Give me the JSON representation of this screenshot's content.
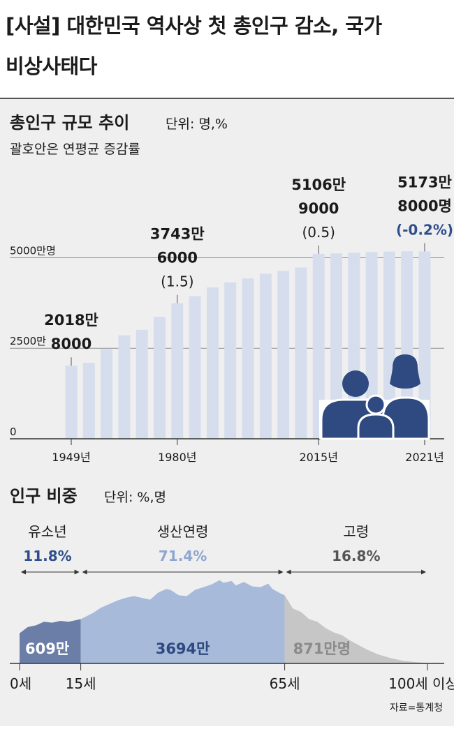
{
  "headline": {
    "line1": "[사설] 대한민국 역사상 첫 총인구 감소, 국가",
    "line2": "비상사태다"
  },
  "colors": {
    "bar": "#d6deee",
    "navy": "#2d4a80",
    "blue_label": "#2f4f8c",
    "light_blue_label": "#8ea6cf",
    "child_area": "#6b7ea8",
    "working_area": "#a8bad9",
    "elderly_area": "#c6c6c6",
    "icon": "#2e4a80"
  },
  "chart_data": [
    {
      "type": "bar",
      "title": "총인구 규모 추이",
      "unit_label": "단위: 명,%",
      "note": "괄호안은 연평균 증감률",
      "y_ticks": [
        {
          "value": 0,
          "label": "0"
        },
        {
          "value": 2500,
          "label": "2500만"
        },
        {
          "value": 5000,
          "label": "5000만명"
        }
      ],
      "ylim": [
        0,
        6300
      ],
      "values": [
        2019,
        2100,
        2480,
        2860,
        3010,
        3370,
        3744,
        3940,
        4180,
        4320,
        4430,
        4560,
        4640,
        4730,
        5107,
        5120,
        5140,
        5160,
        5170,
        5180,
        5174
      ],
      "x_tick_labels": [
        {
          "index": 0,
          "label": "1949년"
        },
        {
          "index": 6,
          "label": "1980년"
        },
        {
          "index": 14,
          "label": "2015년"
        },
        {
          "index": 20,
          "label": "2021년"
        }
      ],
      "callouts": [
        {
          "index": 0,
          "lines": [
            "2018만",
            "8000"
          ],
          "rate": ""
        },
        {
          "index": 6,
          "lines": [
            "3743만",
            "6000"
          ],
          "rate": "(1.5)"
        },
        {
          "index": 14,
          "lines": [
            "5106만",
            "9000"
          ],
          "rate": "(0.5)"
        },
        {
          "index": 20,
          "lines": [
            "5173만",
            "8000명"
          ],
          "rate": "(-0.2%)"
        }
      ]
    },
    {
      "type": "area",
      "title": "인구 비중",
      "unit_label": "단위: %,명",
      "x_ticks": [
        {
          "value": 0,
          "label": "0세"
        },
        {
          "value": 15,
          "label": "15세"
        },
        {
          "value": 65,
          "label": "65세"
        },
        {
          "value": 100,
          "label": "100세 이상"
        }
      ],
      "groups": [
        {
          "name": "유소년",
          "percent": "11.8%",
          "count": "609만",
          "from": 0,
          "to": 15
        },
        {
          "name": "생산연령",
          "percent": "71.4%",
          "count": "3694만",
          "from": 15,
          "to": 65
        },
        {
          "name": "고령",
          "percent": "16.8%",
          "count": "871만명",
          "from": 65,
          "to": 100
        }
      ],
      "profile": [
        [
          0,
          0.34
        ],
        [
          2,
          0.41
        ],
        [
          4,
          0.43
        ],
        [
          6,
          0.47
        ],
        [
          8,
          0.46
        ],
        [
          10,
          0.48
        ],
        [
          12,
          0.47
        ],
        [
          14,
          0.49
        ],
        [
          15,
          0.5
        ],
        [
          18,
          0.57
        ],
        [
          20,
          0.63
        ],
        [
          22,
          0.67
        ],
        [
          24,
          0.71
        ],
        [
          26,
          0.74
        ],
        [
          28,
          0.76
        ],
        [
          30,
          0.74
        ],
        [
          32,
          0.72
        ],
        [
          34,
          0.8
        ],
        [
          36,
          0.84
        ],
        [
          37,
          0.83
        ],
        [
          39,
          0.77
        ],
        [
          41,
          0.76
        ],
        [
          43,
          0.83
        ],
        [
          45,
          0.86
        ],
        [
          47,
          0.89
        ],
        [
          49,
          0.94
        ],
        [
          50,
          0.91
        ],
        [
          52,
          0.93
        ],
        [
          53,
          0.88
        ],
        [
          55,
          0.92
        ],
        [
          57,
          0.87
        ],
        [
          59,
          0.86
        ],
        [
          61,
          0.9
        ],
        [
          62,
          0.84
        ],
        [
          64,
          0.79
        ],
        [
          65,
          0.77
        ],
        [
          67,
          0.62
        ],
        [
          69,
          0.58
        ],
        [
          71,
          0.5
        ],
        [
          73,
          0.47
        ],
        [
          75,
          0.4
        ],
        [
          77,
          0.35
        ],
        [
          79,
          0.32
        ],
        [
          81,
          0.26
        ],
        [
          83,
          0.21
        ],
        [
          85,
          0.16
        ],
        [
          88,
          0.1
        ],
        [
          91,
          0.06
        ],
        [
          94,
          0.03
        ],
        [
          97,
          0.015
        ],
        [
          100,
          0.005
        ]
      ]
    }
  ],
  "source": "자료=통계청"
}
